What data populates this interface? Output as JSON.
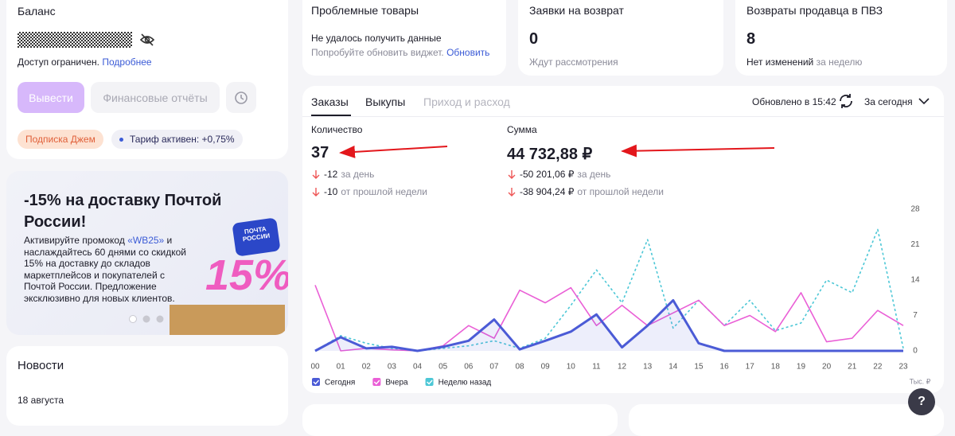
{
  "balance": {
    "title": "Баланс",
    "access": "Доступ ограничен.",
    "access_link": "Подробнее",
    "withdraw": "Вывести",
    "reports": "Финансовые отчёты",
    "subscription": "Подписка Джем",
    "tariff": "Тариф активен: +0,75%"
  },
  "promo": {
    "title": "-15% на доставку Почтой России!",
    "text_before": "Активируйте промокод ",
    "code": "«WB25»",
    "text_after": " и наслаждайтесь 60 днями со скидкой 15% на доставку до складов маркетплейсов и покупателей с Почтой России. Предложение эксклюзивно для новых клиентов.",
    "badge": "ПОЧТА РОССИИ",
    "big": "15%"
  },
  "news": {
    "title": "Новости",
    "date": "18 августа"
  },
  "widgets": [
    {
      "title": "Проблемные товары",
      "error": "Не удалось получить данные",
      "hint": "Попробуйте обновить виджет.",
      "link": "Обновить"
    },
    {
      "title": "Заявки на возврат",
      "value": 0,
      "note": "Ждут рассмотрения"
    },
    {
      "title": "Возвраты продавца в ПВЗ",
      "value": 8,
      "note": "Нет изменений",
      "period": "за неделю"
    }
  ],
  "orders": {
    "tabs": [
      "Заказы",
      "Выкупы",
      "Приход и расход"
    ],
    "updated": "Обновлено в 15:42",
    "period": "За сегодня",
    "metrics": [
      {
        "label": "Количество",
        "value": "37",
        "changes": [
          {
            "value": "-12",
            "period": "за день"
          },
          {
            "value": "-10",
            "period": "от прошлой недели"
          }
        ]
      },
      {
        "label": "Сумма",
        "value": "44 732,88 ₽",
        "changes": [
          {
            "value": "-50 201,06 ₽",
            "period": "за день"
          },
          {
            "value": "-38 904,24 ₽",
            "period": "от прошлой недели"
          }
        ]
      }
    ]
  },
  "chart_data": {
    "type": "line",
    "categories": [
      "00",
      "01",
      "02",
      "03",
      "04",
      "05",
      "06",
      "07",
      "08",
      "09",
      "10",
      "11",
      "12",
      "13",
      "14",
      "15",
      "16",
      "17",
      "18",
      "19",
      "20",
      "21",
      "22",
      "23"
    ],
    "ylim": [
      0,
      28
    ],
    "yticks": [
      0,
      7,
      14,
      21,
      28
    ],
    "y_unit": "Тыс. ₽",
    "series": [
      {
        "name": "Сегодня",
        "color": "#4b5bd6",
        "area": true,
        "values": [
          0,
          2.7,
          0.5,
          0.8,
          0,
          0.8,
          2,
          6.2,
          0.3,
          2,
          3.8,
          7.2,
          0.7,
          5,
          10,
          1.5,
          0,
          0,
          0,
          0,
          0,
          0,
          0,
          0
        ]
      },
      {
        "name": "Вчера",
        "color": "#ea5fd6",
        "values": [
          13,
          0,
          0.5,
          0.2,
          0,
          1,
          5,
          2.5,
          12,
          9.5,
          12.5,
          5,
          9,
          5,
          7.5,
          10,
          5,
          7,
          3.8,
          11.5,
          1.8,
          2.5,
          8,
          5
        ]
      },
      {
        "name": "Неделю назад",
        "color": "#4cc7d6",
        "dash": true,
        "values": [
          0,
          3,
          1.5,
          0.5,
          0,
          0.5,
          1,
          2,
          0.5,
          2.5,
          9,
          16,
          9.5,
          22,
          4.5,
          10,
          5,
          10,
          4,
          5.5,
          14,
          11.5,
          24,
          0.5
        ]
      }
    ]
  }
}
